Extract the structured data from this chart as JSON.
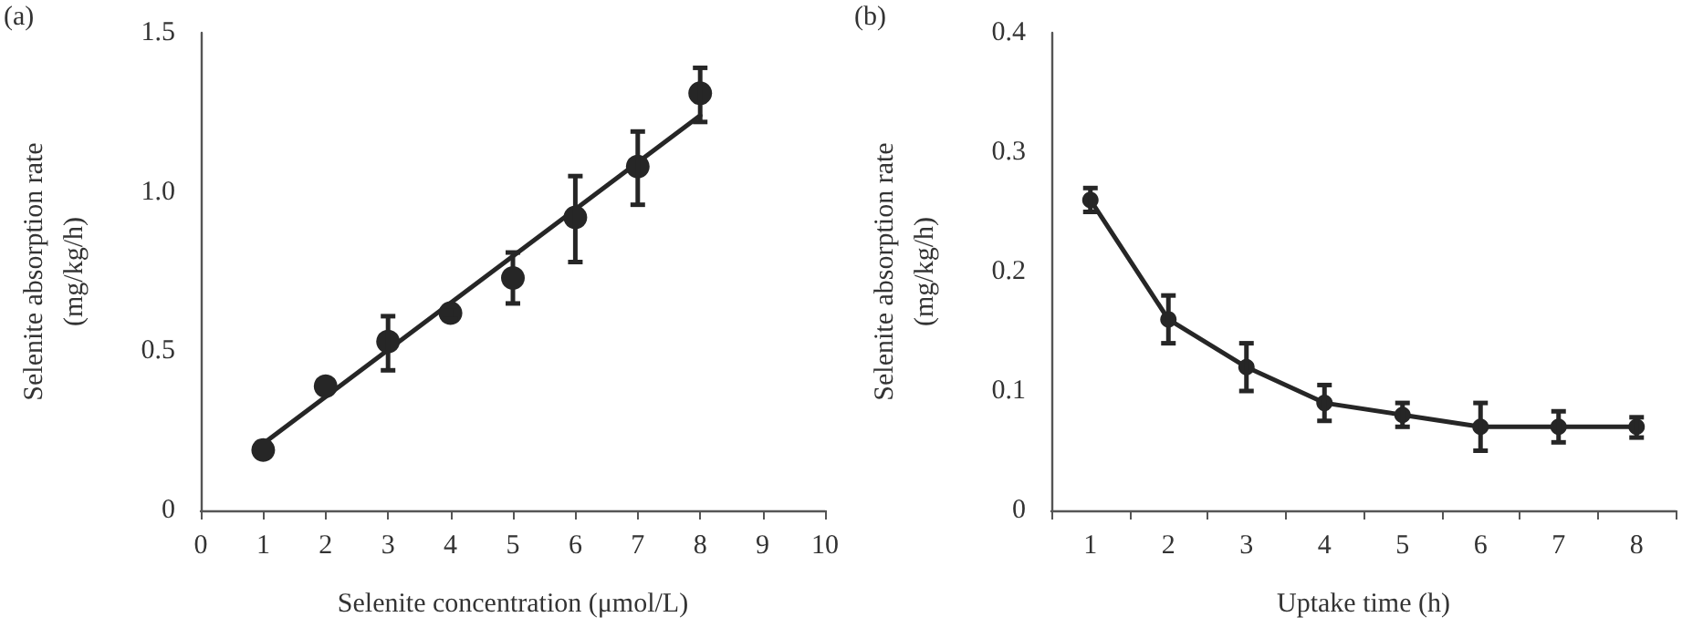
{
  "chart_data": [
    {
      "type": "scatter",
      "xlabel": "Selenite concentration (μmol/L)",
      "ylabel": "Selenite absorption rate\n(mg/kg/h)",
      "annotations": [
        "(a)"
      ],
      "x": [
        1,
        2,
        3,
        4,
        5,
        6,
        7,
        8
      ],
      "xlim": [
        0,
        10
      ],
      "xticks": [
        0,
        1,
        2,
        3,
        4,
        5,
        6,
        7,
        8,
        9,
        10
      ],
      "ylim": [
        0,
        1.5
      ],
      "yticks": [
        0,
        0.5,
        {
          "value": 1,
          "label": "1.0"
        },
        1.5
      ],
      "grid": false,
      "marker": "circle",
      "series": [
        {
          "color": "#262626",
          "values": [
            0.19,
            0.39,
            0.53,
            0.62,
            0.73,
            0.92,
            1.08,
            1.31
          ],
          "errors": [
            null,
            null,
            [
              0.44,
              0.61
            ],
            [
              0.6,
              0.64
            ],
            [
              0.65,
              0.81
            ],
            [
              0.78,
              1.05
            ],
            [
              0.96,
              1.19
            ],
            [
              1.22,
              1.39
            ]
          ]
        },
        {
          "type": "line",
          "color": "#262626",
          "marker": "none",
          "line_style": "solid",
          "x": [
            1,
            8
          ],
          "values": [
            0.21,
            1.24
          ]
        }
      ]
    },
    {
      "type": "line",
      "xlabel": "Uptake time (h)",
      "ylabel": "Selenite absorption rate\n(mg/kg/h)",
      "annotations": [
        "(b)"
      ],
      "categories": [
        "1",
        "2",
        "3",
        "4",
        "5",
        "6",
        "7",
        "8"
      ],
      "ylim": [
        0,
        0.4
      ],
      "yticks": [
        0,
        0.1,
        0.2,
        0.3,
        0.4
      ],
      "grid": false,
      "marker": "circle",
      "line_style": "solid",
      "series": [
        {
          "color": "#262626",
          "values": [
            0.26,
            0.16,
            0.12,
            0.09,
            0.08,
            0.07,
            0.07,
            0.07
          ],
          "errors": [
            [
              0.25,
              0.27
            ],
            [
              0.14,
              0.18
            ],
            [
              0.1,
              0.14
            ],
            [
              0.075,
              0.105
            ],
            [
              0.07,
              0.09
            ],
            [
              0.05,
              0.09
            ],
            [
              0.057,
              0.083
            ],
            [
              0.061,
              0.078
            ]
          ]
        }
      ]
    }
  ]
}
